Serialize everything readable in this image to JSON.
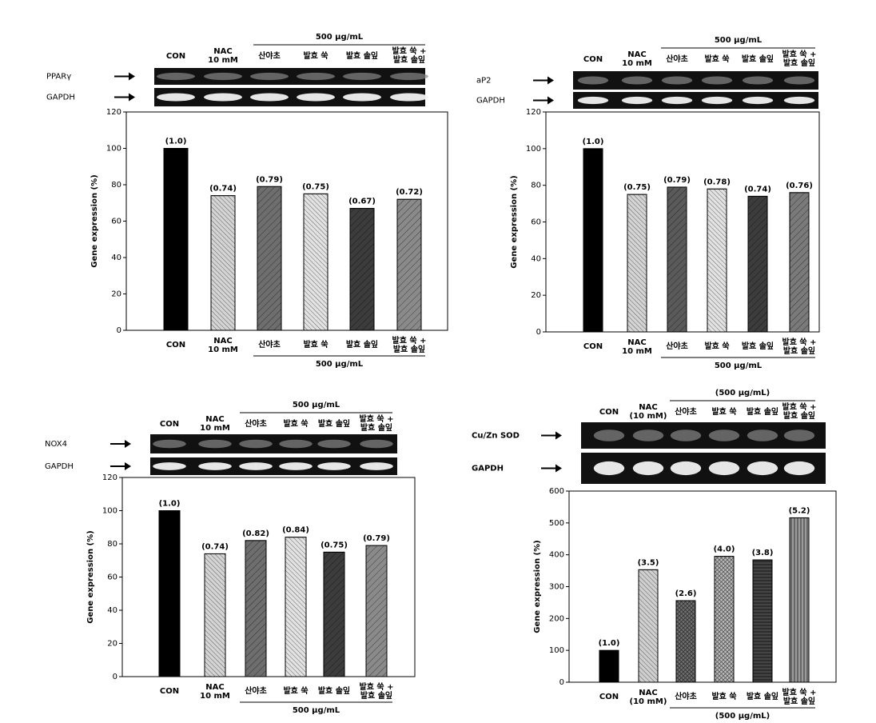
{
  "chart_data": [
    {
      "type": "bar",
      "y_label": "Gene expression (%)",
      "blot_rows": [
        "PPARγ",
        "GAPDH"
      ],
      "group_label": "500 μg/mL",
      "categories": [
        "CON",
        "NAC\n10 mM",
        "산야초",
        "발효 쑥",
        "발효 솔잎",
        "발효 쑥 +\n발효 솔잎"
      ],
      "values": [
        100,
        74,
        79,
        75,
        67,
        72
      ],
      "value_labels": [
        "(1.0)",
        "(0.74)",
        "(0.79)",
        "(0.75)",
        "(0.67)",
        "(0.72)"
      ],
      "colors": [
        "#000000",
        "#d4d4d4",
        "#6e6e6e",
        "#e2e2e2",
        "#3c3c3c",
        "#8a8a8a"
      ],
      "ylim": [
        0,
        120
      ],
      "yticks": [
        0,
        20,
        40,
        60,
        80,
        100,
        120
      ]
    },
    {
      "type": "bar",
      "y_label": "Gene expression (%)",
      "blot_rows": [
        "aP2",
        "GAPDH"
      ],
      "group_label": "500 μg/mL",
      "categories": [
        "CON",
        "NAC\n10 mM",
        "산야초",
        "발효 쑥",
        "발효 솔잎",
        "발효 쑥 +\n발효 솔잎"
      ],
      "values": [
        100,
        75,
        79,
        78,
        74,
        76
      ],
      "value_labels": [
        "(1.0)",
        "(0.75)",
        "(0.79)",
        "(0.78)",
        "(0.74)",
        "(0.76)"
      ],
      "colors": [
        "#000000",
        "#d4d4d4",
        "#5a5a5a",
        "#e2e2e2",
        "#3c3c3c",
        "#7a7a7a"
      ],
      "ylim": [
        0,
        120
      ],
      "yticks": [
        0,
        20,
        40,
        60,
        80,
        100,
        120
      ]
    },
    {
      "type": "bar",
      "y_label": "Gene expression (%)",
      "blot_rows": [
        "NOX4",
        "GAPDH"
      ],
      "group_label": "500 μg/mL",
      "categories": [
        "CON",
        "NAC\n10 mM",
        "산야초",
        "발효 쑥",
        "발효 솔잎",
        "발효 쑥 +\n발효 솔잎"
      ],
      "values": [
        100,
        74,
        82,
        84,
        75,
        79
      ],
      "value_labels": [
        "(1.0)",
        "(0.74)",
        "(0.82)",
        "(0.84)",
        "(0.75)",
        "(0.79)"
      ],
      "colors": [
        "#000000",
        "#d4d4d4",
        "#6e6e6e",
        "#e2e2e2",
        "#3c3c3c",
        "#8a8a8a"
      ],
      "ylim": [
        0,
        120
      ],
      "yticks": [
        0,
        20,
        40,
        60,
        80,
        100,
        120
      ]
    },
    {
      "type": "bar",
      "y_label": "Gene expression (%)",
      "blot_rows": [
        "Cu/Zn SOD",
        "GAPDH"
      ],
      "group_label": "(500 μg/mL)",
      "categories": [
        "CON",
        "NAC\n(10 mM)",
        "산야초",
        "발효 쑥",
        "발효 솔잎",
        "발효 쑥 +\n발효 솔잎"
      ],
      "values": [
        100,
        353,
        256,
        395,
        384,
        516
      ],
      "value_labels": [
        "(1.0)",
        "(3.5)",
        "(2.6)",
        "(4.0)",
        "(3.8)",
        "(5.2)"
      ],
      "colors": [
        "#000000",
        "#cfcfcf",
        "#707070",
        "#bdbdbd",
        "#444444",
        "#9a9a9a"
      ],
      "ylim": [
        0,
        600
      ],
      "yticks": [
        0,
        100,
        200,
        300,
        400,
        500,
        600
      ]
    }
  ]
}
